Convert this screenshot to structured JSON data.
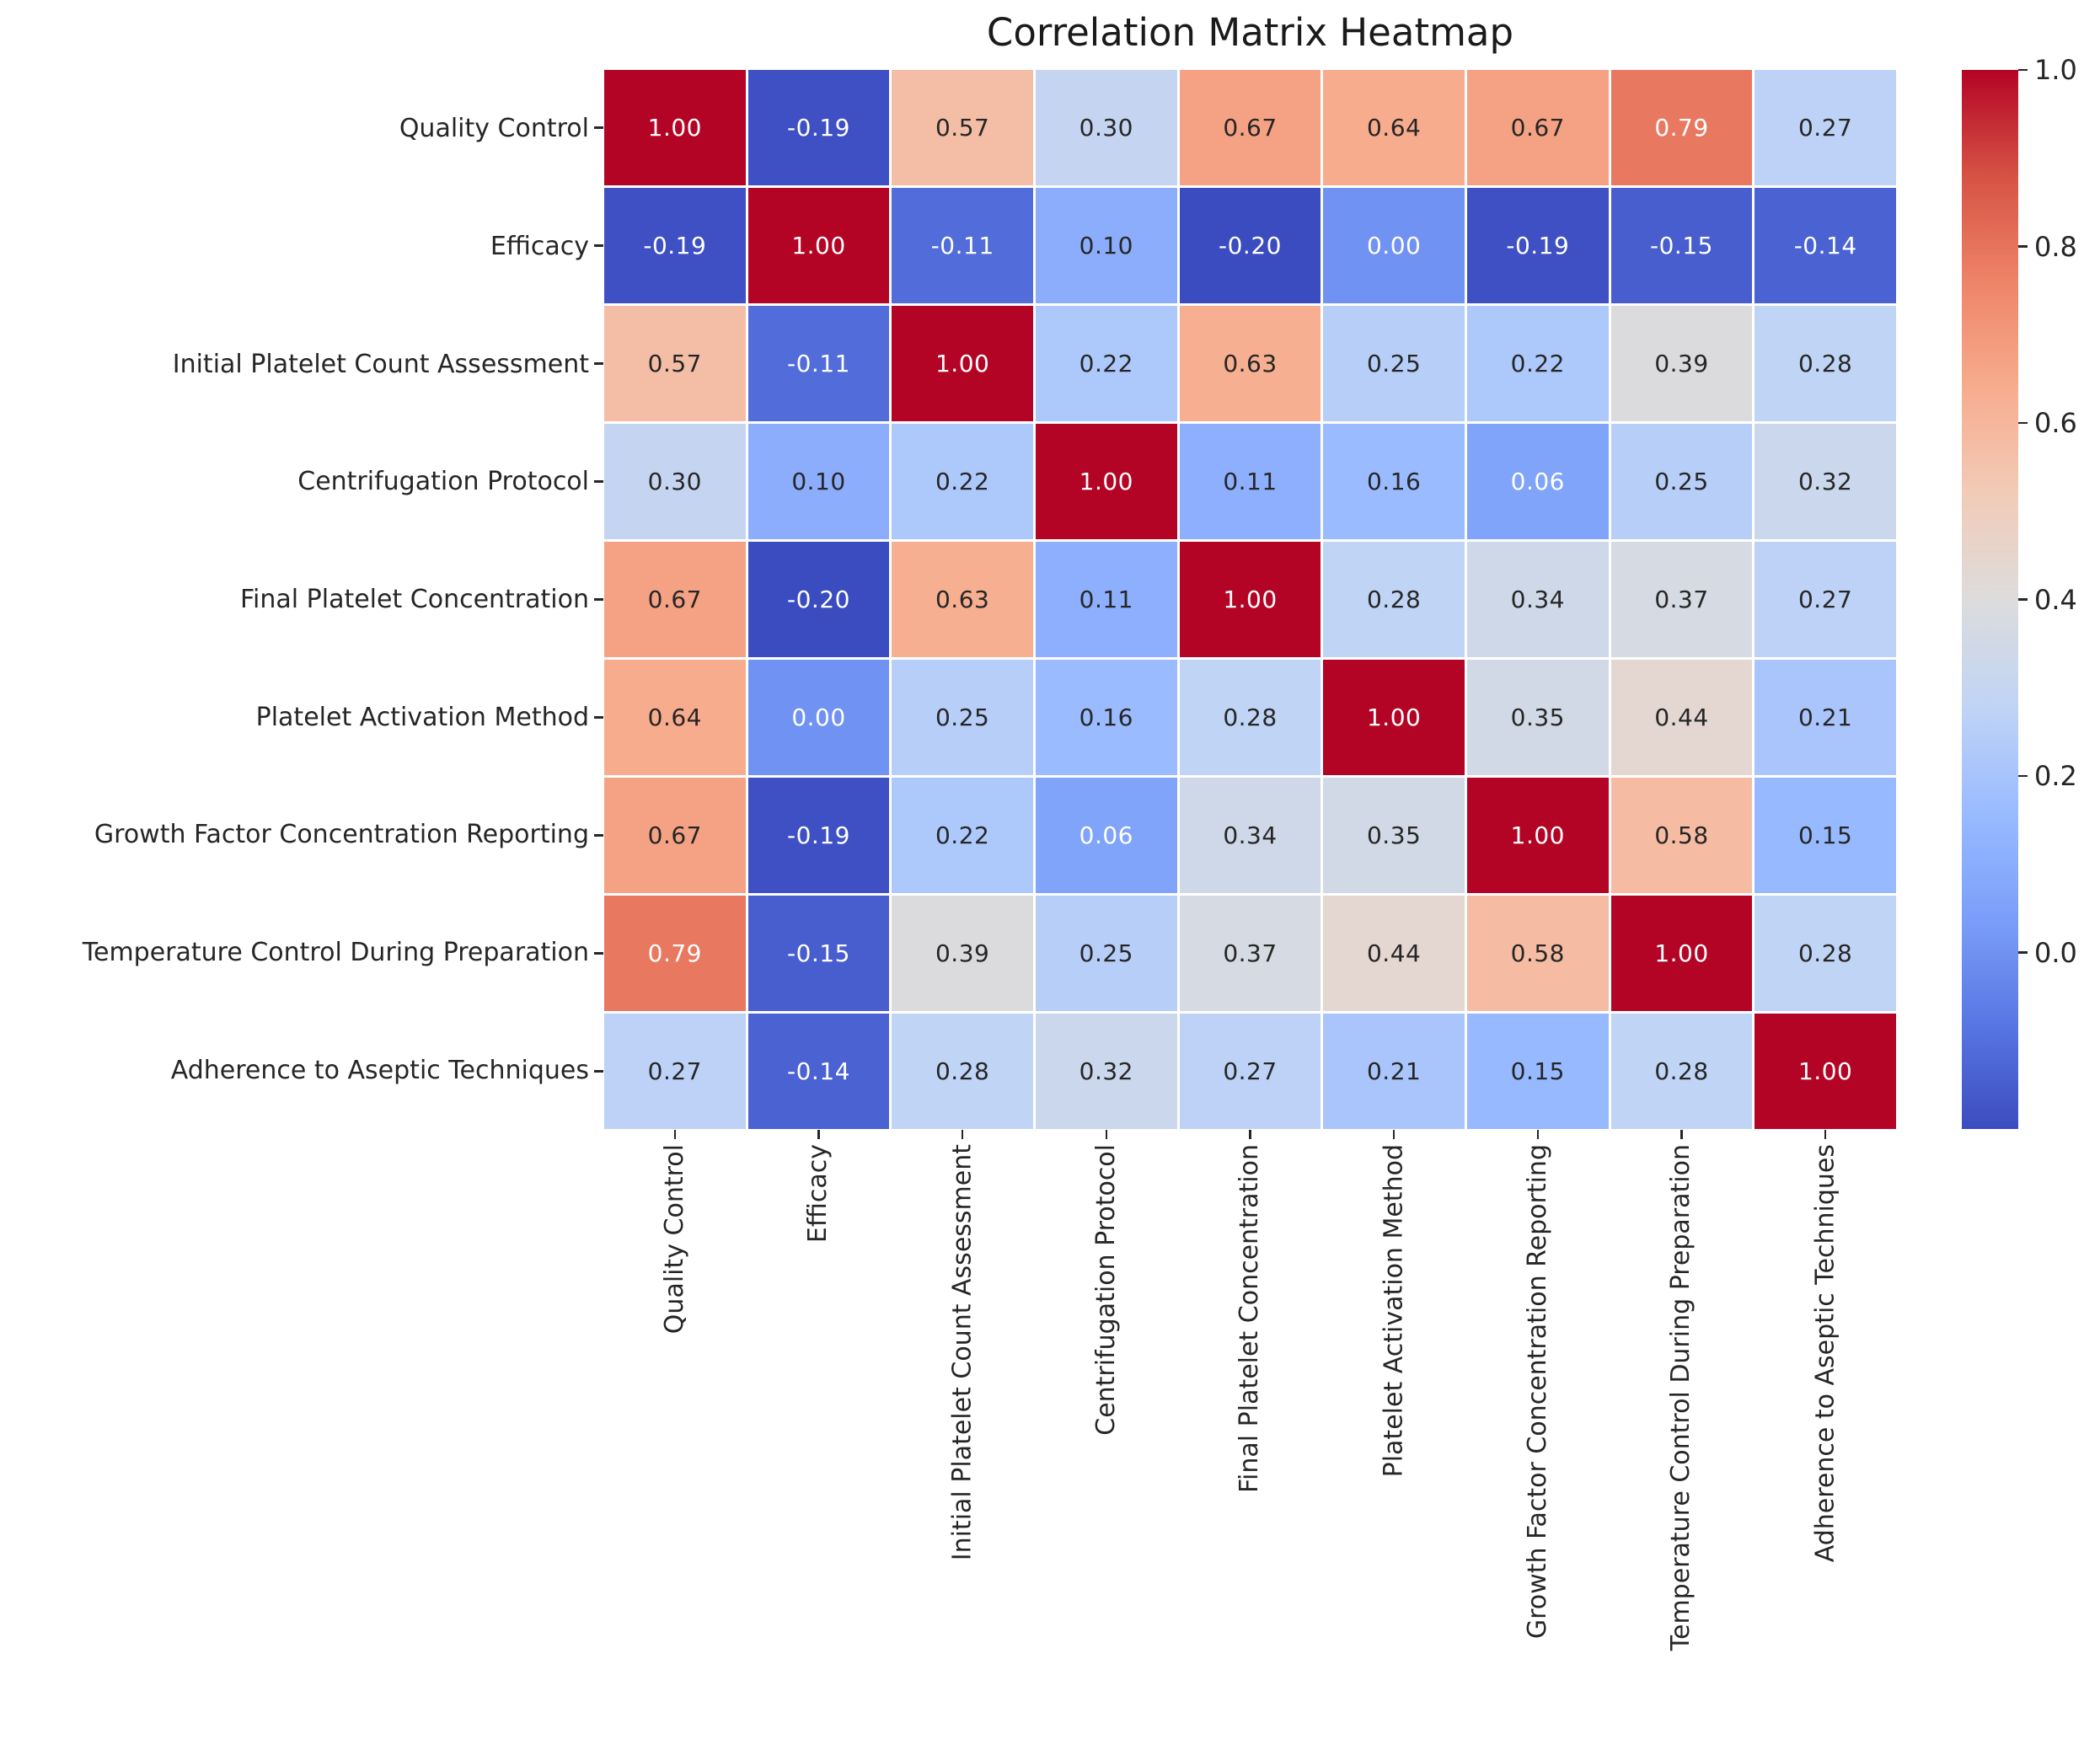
{
  "title": "Correlation Matrix Heatmap",
  "background_color": "#ffffff",
  "text_color": "#262626",
  "chart_data": {
    "type": "heatmap",
    "title": "Correlation Matrix Heatmap",
    "labels": [
      "Quality Control",
      "Efficacy",
      "Initial Platelet Count Assessment",
      "Centrifugation Protocol",
      "Final Platelet Concentration",
      "Platelet Activation Method",
      "Growth Factor Concentration Reporting",
      "Temperature Control During Preparation",
      "Adherence to Aseptic Techniques"
    ],
    "matrix": [
      [
        1.0,
        -0.19,
        0.57,
        0.3,
        0.67,
        0.64,
        0.67,
        0.79,
        0.27
      ],
      [
        -0.19,
        1.0,
        -0.11,
        0.1,
        -0.2,
        0.0,
        -0.19,
        -0.15,
        -0.14
      ],
      [
        0.57,
        -0.11,
        1.0,
        0.22,
        0.63,
        0.25,
        0.22,
        0.39,
        0.28
      ],
      [
        0.3,
        0.1,
        0.22,
        1.0,
        0.11,
        0.16,
        0.06,
        0.25,
        0.32
      ],
      [
        0.67,
        -0.2,
        0.63,
        0.11,
        1.0,
        0.28,
        0.34,
        0.37,
        0.27
      ],
      [
        0.64,
        0.0,
        0.25,
        0.16,
        0.28,
        1.0,
        0.35,
        0.44,
        0.21
      ],
      [
        0.67,
        -0.19,
        0.22,
        0.06,
        0.34,
        0.35,
        1.0,
        0.58,
        0.15
      ],
      [
        0.79,
        -0.15,
        0.39,
        0.25,
        0.37,
        0.44,
        0.58,
        1.0,
        0.28
      ],
      [
        0.27,
        -0.14,
        0.28,
        0.32,
        0.27,
        0.21,
        0.15,
        0.28,
        1.0
      ]
    ],
    "annotation_decimals": 2,
    "vmin": -0.2,
    "vmax": 1.0,
    "colormap": "coolwarm",
    "colormap_stops": [
      "#3b4cc0",
      "#5977e3",
      "#7b9ff9",
      "#9abbff",
      "#c0d4f5",
      "#dddcdc",
      "#f2cbb7",
      "#f7ac8e",
      "#ee8468",
      "#d65244",
      "#b40426"
    ],
    "annotation_color_dark": "#262626",
    "annotation_color_light": "#ffffff",
    "gridline_color": "#ffffff",
    "colorbar_ticks": [
      "1.0",
      "0.8",
      "0.6",
      "0.4",
      "0.2",
      "0.0"
    ],
    "colorbar_tick_values": [
      1.0,
      0.8,
      0.6,
      0.4,
      0.2,
      0.0
    ],
    "legend_position": "right",
    "grid": "off"
  }
}
